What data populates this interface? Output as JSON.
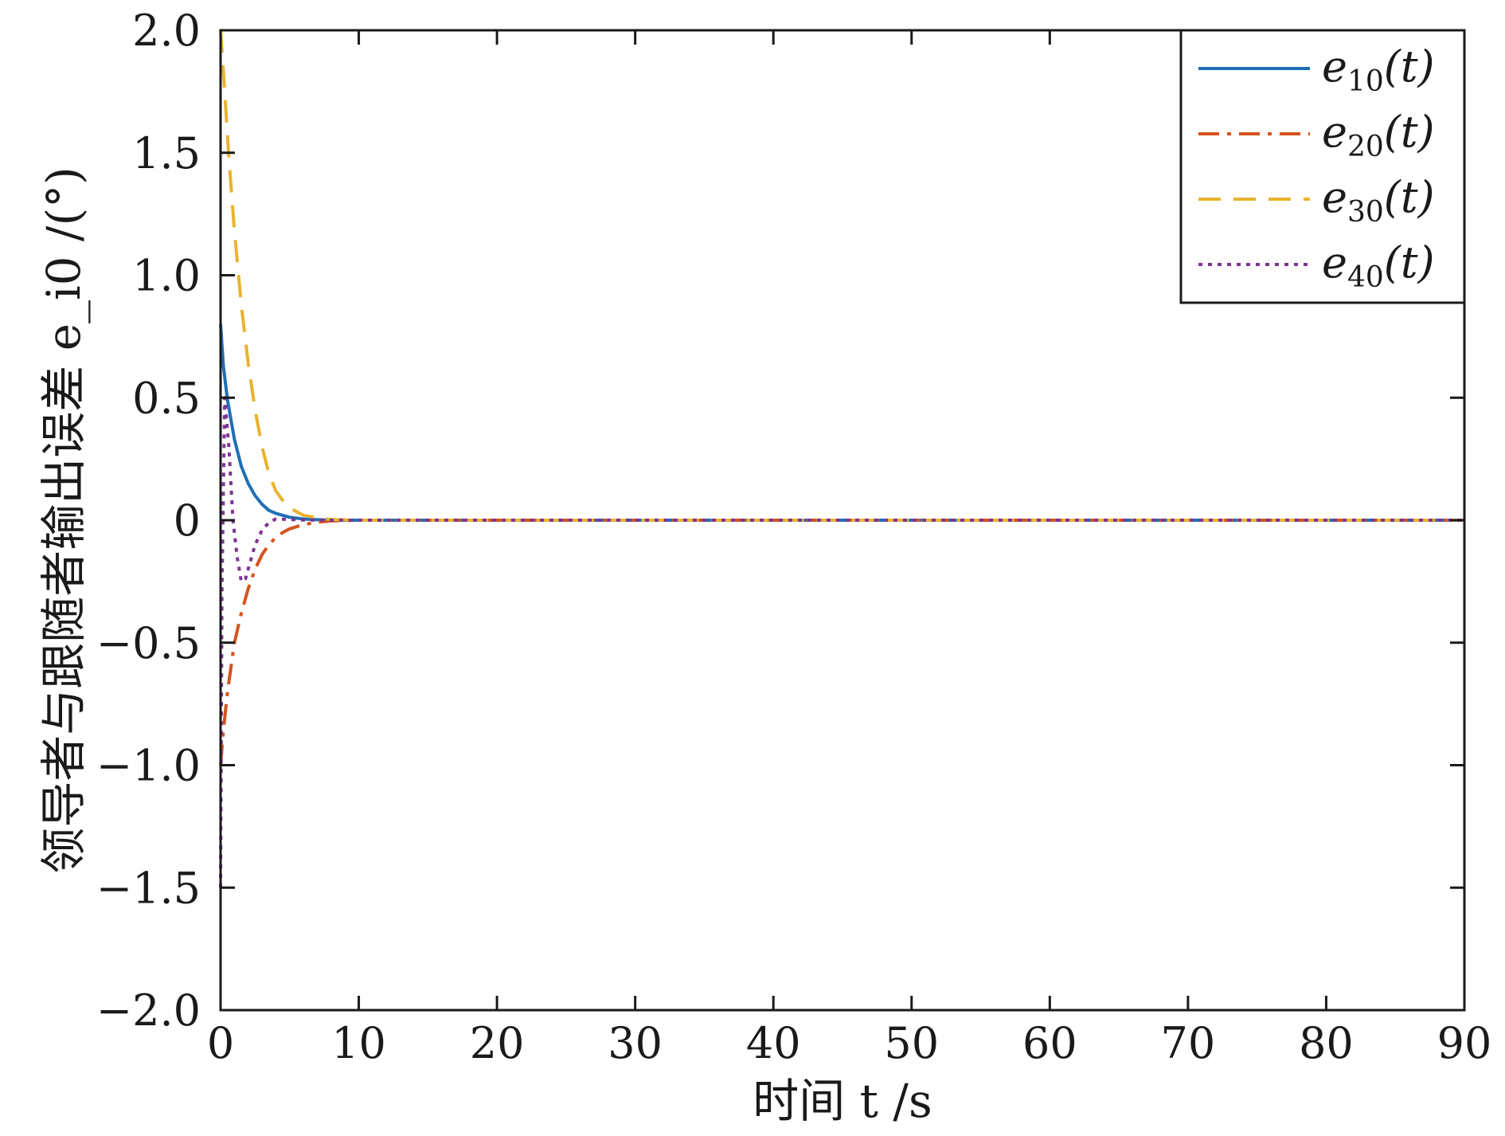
{
  "chart_data": {
    "type": "line",
    "xlabel": "时间 t /s",
    "ylabel": "领导者与跟随者输出误差 e_i0 /(°)",
    "xlim": [
      0,
      90
    ],
    "ylim": [
      -2.0,
      2.0
    ],
    "xticks": [
      0,
      10,
      20,
      30,
      40,
      50,
      60,
      70,
      80,
      90
    ],
    "yticks": [
      -2.0,
      -1.5,
      -1.0,
      -0.5,
      0,
      0.5,
      1.0,
      1.5,
      2.0
    ],
    "xtick_labels": [
      "0",
      "10",
      "20",
      "30",
      "40",
      "50",
      "60",
      "70",
      "80",
      "90"
    ],
    "ytick_labels": [
      "−2.0",
      "−1.5",
      "−1.0",
      "−0.5",
      "0",
      "0.5",
      "1.0",
      "1.5",
      "2.0"
    ],
    "grid": false,
    "legend_position": "top-right",
    "series": [
      {
        "name": "e10(t)",
        "legend_label": "e",
        "legend_sub": "10",
        "legend_suffix": "(t)",
        "color": "#1f6fb4",
        "style": "solid",
        "x": [
          0,
          0.2,
          0.5,
          1.0,
          1.5,
          2.0,
          2.5,
          3.0,
          3.5,
          4.0,
          5.0,
          6.0,
          7.0,
          8.0,
          10.0,
          20.0,
          40.0,
          60.0,
          90.0
        ],
        "y": [
          0.8,
          0.63,
          0.49,
          0.33,
          0.22,
          0.15,
          0.1,
          0.065,
          0.04,
          0.028,
          0.012,
          0.005,
          0.002,
          0.0,
          0.0,
          0.0,
          0.0,
          0.0,
          0.0
        ]
      },
      {
        "name": "e20(t)",
        "legend_label": "e",
        "legend_sub": "20",
        "legend_suffix": "(t)",
        "color": "#d4531e",
        "style": "dashdot",
        "x": [
          0,
          0.2,
          0.5,
          1.0,
          1.5,
          2.0,
          2.5,
          3.0,
          3.5,
          4.0,
          4.5,
          5.0,
          6.0,
          7.0,
          8.0,
          10.0,
          20.0,
          40.0,
          60.0,
          90.0
        ],
        "y": [
          -1.0,
          -0.86,
          -0.7,
          -0.5,
          -0.38,
          -0.28,
          -0.2,
          -0.14,
          -0.1,
          -0.07,
          -0.05,
          -0.035,
          -0.018,
          -0.008,
          -0.003,
          0.0,
          0.0,
          0.0,
          0.0,
          0.0
        ]
      },
      {
        "name": "e30(t)",
        "legend_label": "e",
        "legend_sub": "30",
        "legend_suffix": "(t)",
        "color": "#e8b32e",
        "style": "dashed",
        "x": [
          0,
          0.3,
          0.6,
          1.0,
          1.5,
          2.0,
          2.5,
          3.0,
          3.5,
          4.0,
          4.5,
          5.0,
          5.5,
          6.0,
          7.0,
          8.0,
          10.0,
          20.0,
          40.0,
          60.0,
          90.0
        ],
        "y": [
          2.0,
          1.75,
          1.48,
          1.18,
          0.88,
          0.64,
          0.45,
          0.3,
          0.19,
          0.12,
          0.08,
          0.05,
          0.035,
          0.02,
          0.01,
          0.003,
          0.0,
          0.0,
          0.0,
          0.0,
          0.0
        ]
      },
      {
        "name": "e40(t)",
        "legend_label": "e",
        "legend_sub": "40",
        "legend_suffix": "(t)",
        "color": "#7d3592",
        "style": "dotted",
        "x": [
          0,
          0.1,
          0.3,
          0.6,
          0.9,
          1.2,
          1.5,
          1.8,
          2.1,
          2.5,
          3.0,
          3.5,
          4.0,
          5.0,
          6.0,
          8.0,
          10.0,
          20.0,
          40.0,
          60.0,
          90.0
        ],
        "y": [
          -1.5,
          -0.3,
          0.5,
          0.3,
          0.0,
          -0.15,
          -0.25,
          -0.24,
          -0.18,
          -0.1,
          -0.04,
          -0.01,
          0.005,
          0.003,
          0.001,
          0.0,
          0.0,
          0.0,
          0.0,
          0.0,
          0.0
        ]
      }
    ]
  }
}
